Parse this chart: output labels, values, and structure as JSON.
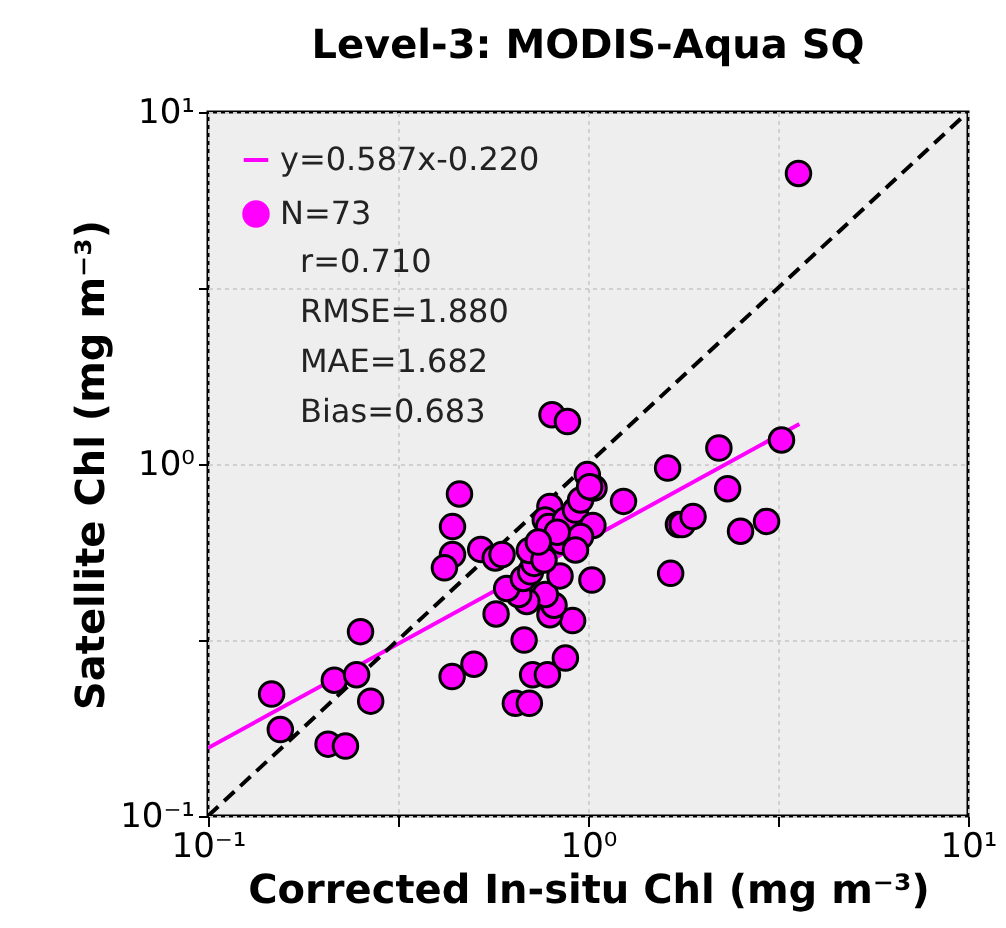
{
  "chart_data": {
    "type": "scatter",
    "title": "Level-3: MODIS-Aqua SQ",
    "xlabel": "Corrected In-situ Chl (mg m⁻³)",
    "ylabel": "Satellite Chl (mg m⁻³)",
    "log": "xy",
    "xlim": [
      0.1,
      10
    ],
    "ylim": [
      0.1,
      10
    ],
    "xticks": [
      {
        "value": 0.1,
        "label": "10⁻¹"
      },
      {
        "value": 0.3162,
        "label": null
      },
      {
        "value": 1,
        "label": "10⁰"
      },
      {
        "value": 3.162,
        "label": null
      },
      {
        "value": 10,
        "label": "10¹"
      }
    ],
    "yticks": [
      {
        "value": 0.1,
        "label": "10⁻¹"
      },
      {
        "value": 0.3162,
        "label": null
      },
      {
        "value": 1,
        "label": "10⁰"
      },
      {
        "value": 3.162,
        "label": null
      },
      {
        "value": 10,
        "label": "10¹"
      }
    ],
    "grid": true,
    "legend": "top left",
    "annotations": [
      "r=0.710",
      "RMSE=1.880",
      "MAE=1.682",
      "Bias=0.683"
    ],
    "series": [
      {
        "name": "y=0.587x-0.220",
        "type": "line",
        "color": "#ff00ff",
        "line_style": "solid",
        "x": [
          0.1,
          3.6
        ],
        "values": [
          0.156,
          1.3
        ]
      },
      {
        "type": "line",
        "color": "#000000",
        "line_style": "dashed",
        "x": [
          0.1,
          10
        ],
        "values": [
          0.1,
          10
        ]
      },
      {
        "name": "N=73",
        "marker": "circle",
        "color": "#ff00ff",
        "x": [
          0.147,
          0.155,
          0.207,
          0.23,
          0.215,
          0.246,
          0.252,
          0.268,
          0.439,
          0.501,
          0.459,
          0.44,
          0.44,
          0.419,
          0.522,
          0.57,
          0.594,
          0.573,
          0.644,
          0.701,
          0.679,
          0.715,
          0.782,
          0.872,
          0.911,
          0.794,
          0.814,
          0.772,
          0.69,
          0.657,
          0.611,
          0.844,
          0.676,
          0.706,
          0.721,
          0.701,
          1.024,
          0.794,
          0.772,
          0.788,
          0.872,
          0.927,
          0.956,
          0.996,
          1.037,
          0.804,
          0.883,
          0.854,
          1.24,
          1.03,
          1.62,
          1.65,
          1.73,
          1.77,
          1.89,
          2.21,
          2.33,
          2.52,
          2.95,
          3.23,
          3.58,
          0.956,
          0.927,
          0.766,
          0.83,
          1.01,
          0.74
        ],
        "values": [
          0.222,
          0.176,
          0.16,
          0.158,
          0.243,
          0.252,
          0.334,
          0.212,
          0.249,
          0.27,
          0.822,
          0.664,
          0.553,
          0.507,
          0.572,
          0.541,
          0.553,
          0.375,
          0.209,
          0.209,
          0.316,
          0.252,
          0.252,
          0.281,
          0.359,
          0.373,
          0.397,
          0.426,
          0.407,
          0.426,
          0.443,
          0.481,
          0.473,
          0.494,
          0.522,
          0.568,
          0.468,
          0.757,
          0.693,
          0.664,
          0.693,
          0.74,
          0.79,
          0.933,
          0.855,
          1.38,
          1.32,
          0.603,
          0.783,
          0.669,
          0.974,
          0.489,
          0.673,
          0.673,
          0.709,
          1.11,
          0.851,
          0.644,
          0.687,
          1.17,
          6.69,
          0.622,
          0.57,
          0.534,
          0.64,
          0.862,
          0.6
        ]
      }
    ]
  }
}
